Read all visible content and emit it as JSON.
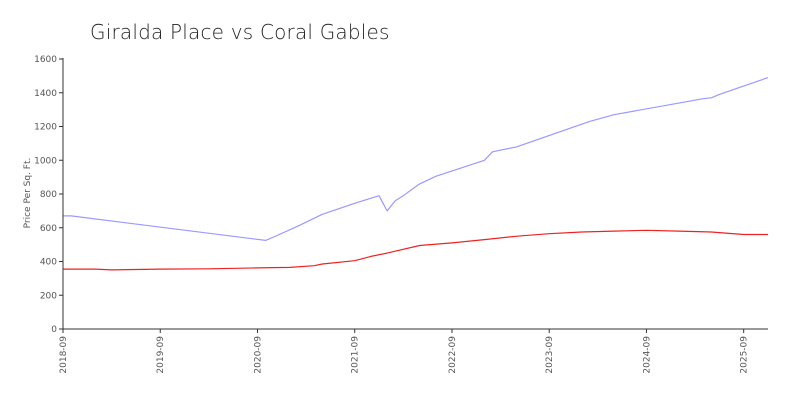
{
  "chart_data": {
    "type": "line",
    "title": "Giralda Place vs Coral Gables",
    "xlabel": "",
    "ylabel": "Price Per Sq. Ft.",
    "ylim": [
      0,
      1600
    ],
    "xlim": [
      "2018-09",
      "2025-12"
    ],
    "yticks": [
      0,
      200,
      400,
      600,
      800,
      1000,
      1200,
      1400,
      1600
    ],
    "xticks": [
      "2018-09",
      "2019-09",
      "2020-09",
      "2021-09",
      "2022-09",
      "2023-09",
      "2024-09",
      "2025-09"
    ],
    "grid": false,
    "series": [
      {
        "color": "#9999ff",
        "x": [
          "2018-09",
          "2018-10",
          "2020-10",
          "2020-11",
          "2021-02",
          "2021-05",
          "2021-09",
          "2021-12",
          "2022-01",
          "2022-02",
          "2022-03",
          "2022-05",
          "2022-07",
          "2023-01",
          "2023-02",
          "2023-05",
          "2024-02",
          "2024-05",
          "2025-04",
          "2025-05",
          "2025-06",
          "2025-12"
        ],
        "values": [
          670,
          670,
          525,
          545,
          610,
          680,
          745,
          790,
          700,
          760,
          790,
          860,
          905,
          1000,
          1050,
          1080,
          1230,
          1270,
          1365,
          1370,
          1390,
          1490
        ]
      },
      {
        "color": "#ee2222",
        "x": [
          "2018-09",
          "2019-01",
          "2019-03",
          "2019-09",
          "2020-03",
          "2020-09",
          "2021-01",
          "2021-04",
          "2021-05",
          "2021-09",
          "2021-11",
          "2022-01",
          "2022-05",
          "2022-09",
          "2023-01",
          "2023-05",
          "2023-09",
          "2024-01",
          "2024-05",
          "2024-09",
          "2025-01",
          "2025-05",
          "2025-09",
          "2025-12"
        ],
        "values": [
          355,
          355,
          350,
          355,
          357,
          362,
          365,
          375,
          385,
          405,
          430,
          450,
          495,
          510,
          530,
          550,
          565,
          575,
          580,
          585,
          580,
          575,
          560,
          560
        ]
      }
    ]
  }
}
